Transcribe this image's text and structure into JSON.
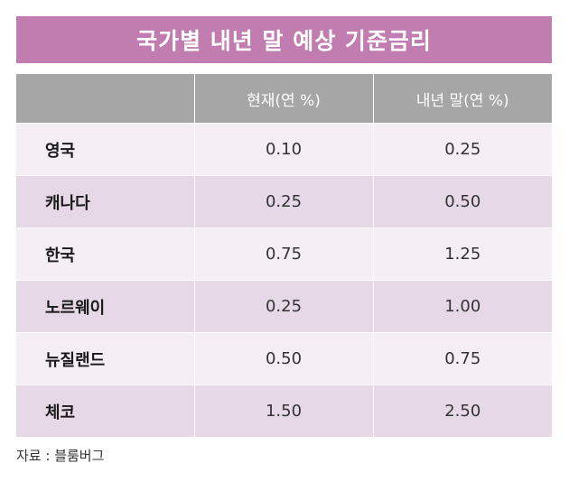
{
  "title": "국가별 내년 말 예상 기준금리",
  "table": {
    "headers": [
      "",
      "현재(연 %)",
      "내년 말(연 %)"
    ],
    "rows": [
      {
        "country": "영국",
        "current": "0.10",
        "next_year_end": "0.25"
      },
      {
        "country": "캐나다",
        "current": "0.25",
        "next_year_end": "0.50"
      },
      {
        "country": "한국",
        "current": "0.75",
        "next_year_end": "1.25"
      },
      {
        "country": "노르웨이",
        "current": "0.25",
        "next_year_end": "1.00"
      },
      {
        "country": "뉴질랜드",
        "current": "0.50",
        "next_year_end": "0.75"
      },
      {
        "country": "체코",
        "current": "1.50",
        "next_year_end": "2.50"
      }
    ]
  },
  "source": "자료 : 블룸버그",
  "colors": {
    "title_bg": "#c27db0",
    "header_bg": "#a6a6a6",
    "row_light": "#f5eef5",
    "row_dark": "#e6d8e6"
  }
}
